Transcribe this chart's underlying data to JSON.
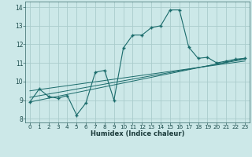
{
  "title": "",
  "xlabel": "Humidex (Indice chaleur)",
  "background_color": "#cce8e8",
  "grid_color": "#aacccc",
  "line_color": "#1a6b6b",
  "xlim": [
    -0.5,
    23.5
  ],
  "ylim": [
    7.8,
    14.3
  ],
  "xticks": [
    0,
    1,
    2,
    3,
    4,
    5,
    6,
    7,
    8,
    9,
    10,
    11,
    12,
    13,
    14,
    15,
    16,
    17,
    18,
    19,
    20,
    21,
    22,
    23
  ],
  "yticks": [
    8,
    9,
    10,
    11,
    12,
    13,
    14
  ],
  "line1_x": [
    0,
    1,
    2,
    3,
    4,
    5,
    6,
    7,
    8,
    9,
    10,
    11,
    12,
    13,
    14,
    15,
    16,
    17,
    18,
    19,
    20,
    21,
    22,
    23
  ],
  "line1_y": [
    8.9,
    9.6,
    9.2,
    9.1,
    9.25,
    8.2,
    8.85,
    10.5,
    10.6,
    9.0,
    11.8,
    12.5,
    12.5,
    12.9,
    13.0,
    13.85,
    13.85,
    11.85,
    11.25,
    11.3,
    11.0,
    11.1,
    11.2,
    11.25
  ],
  "line2_x": [
    0,
    23
  ],
  "line2_y": [
    8.9,
    11.25
  ],
  "line3_x": [
    0,
    23
  ],
  "line3_y": [
    9.15,
    11.2
  ],
  "line4_x": [
    0,
    23
  ],
  "line4_y": [
    9.5,
    11.1
  ]
}
